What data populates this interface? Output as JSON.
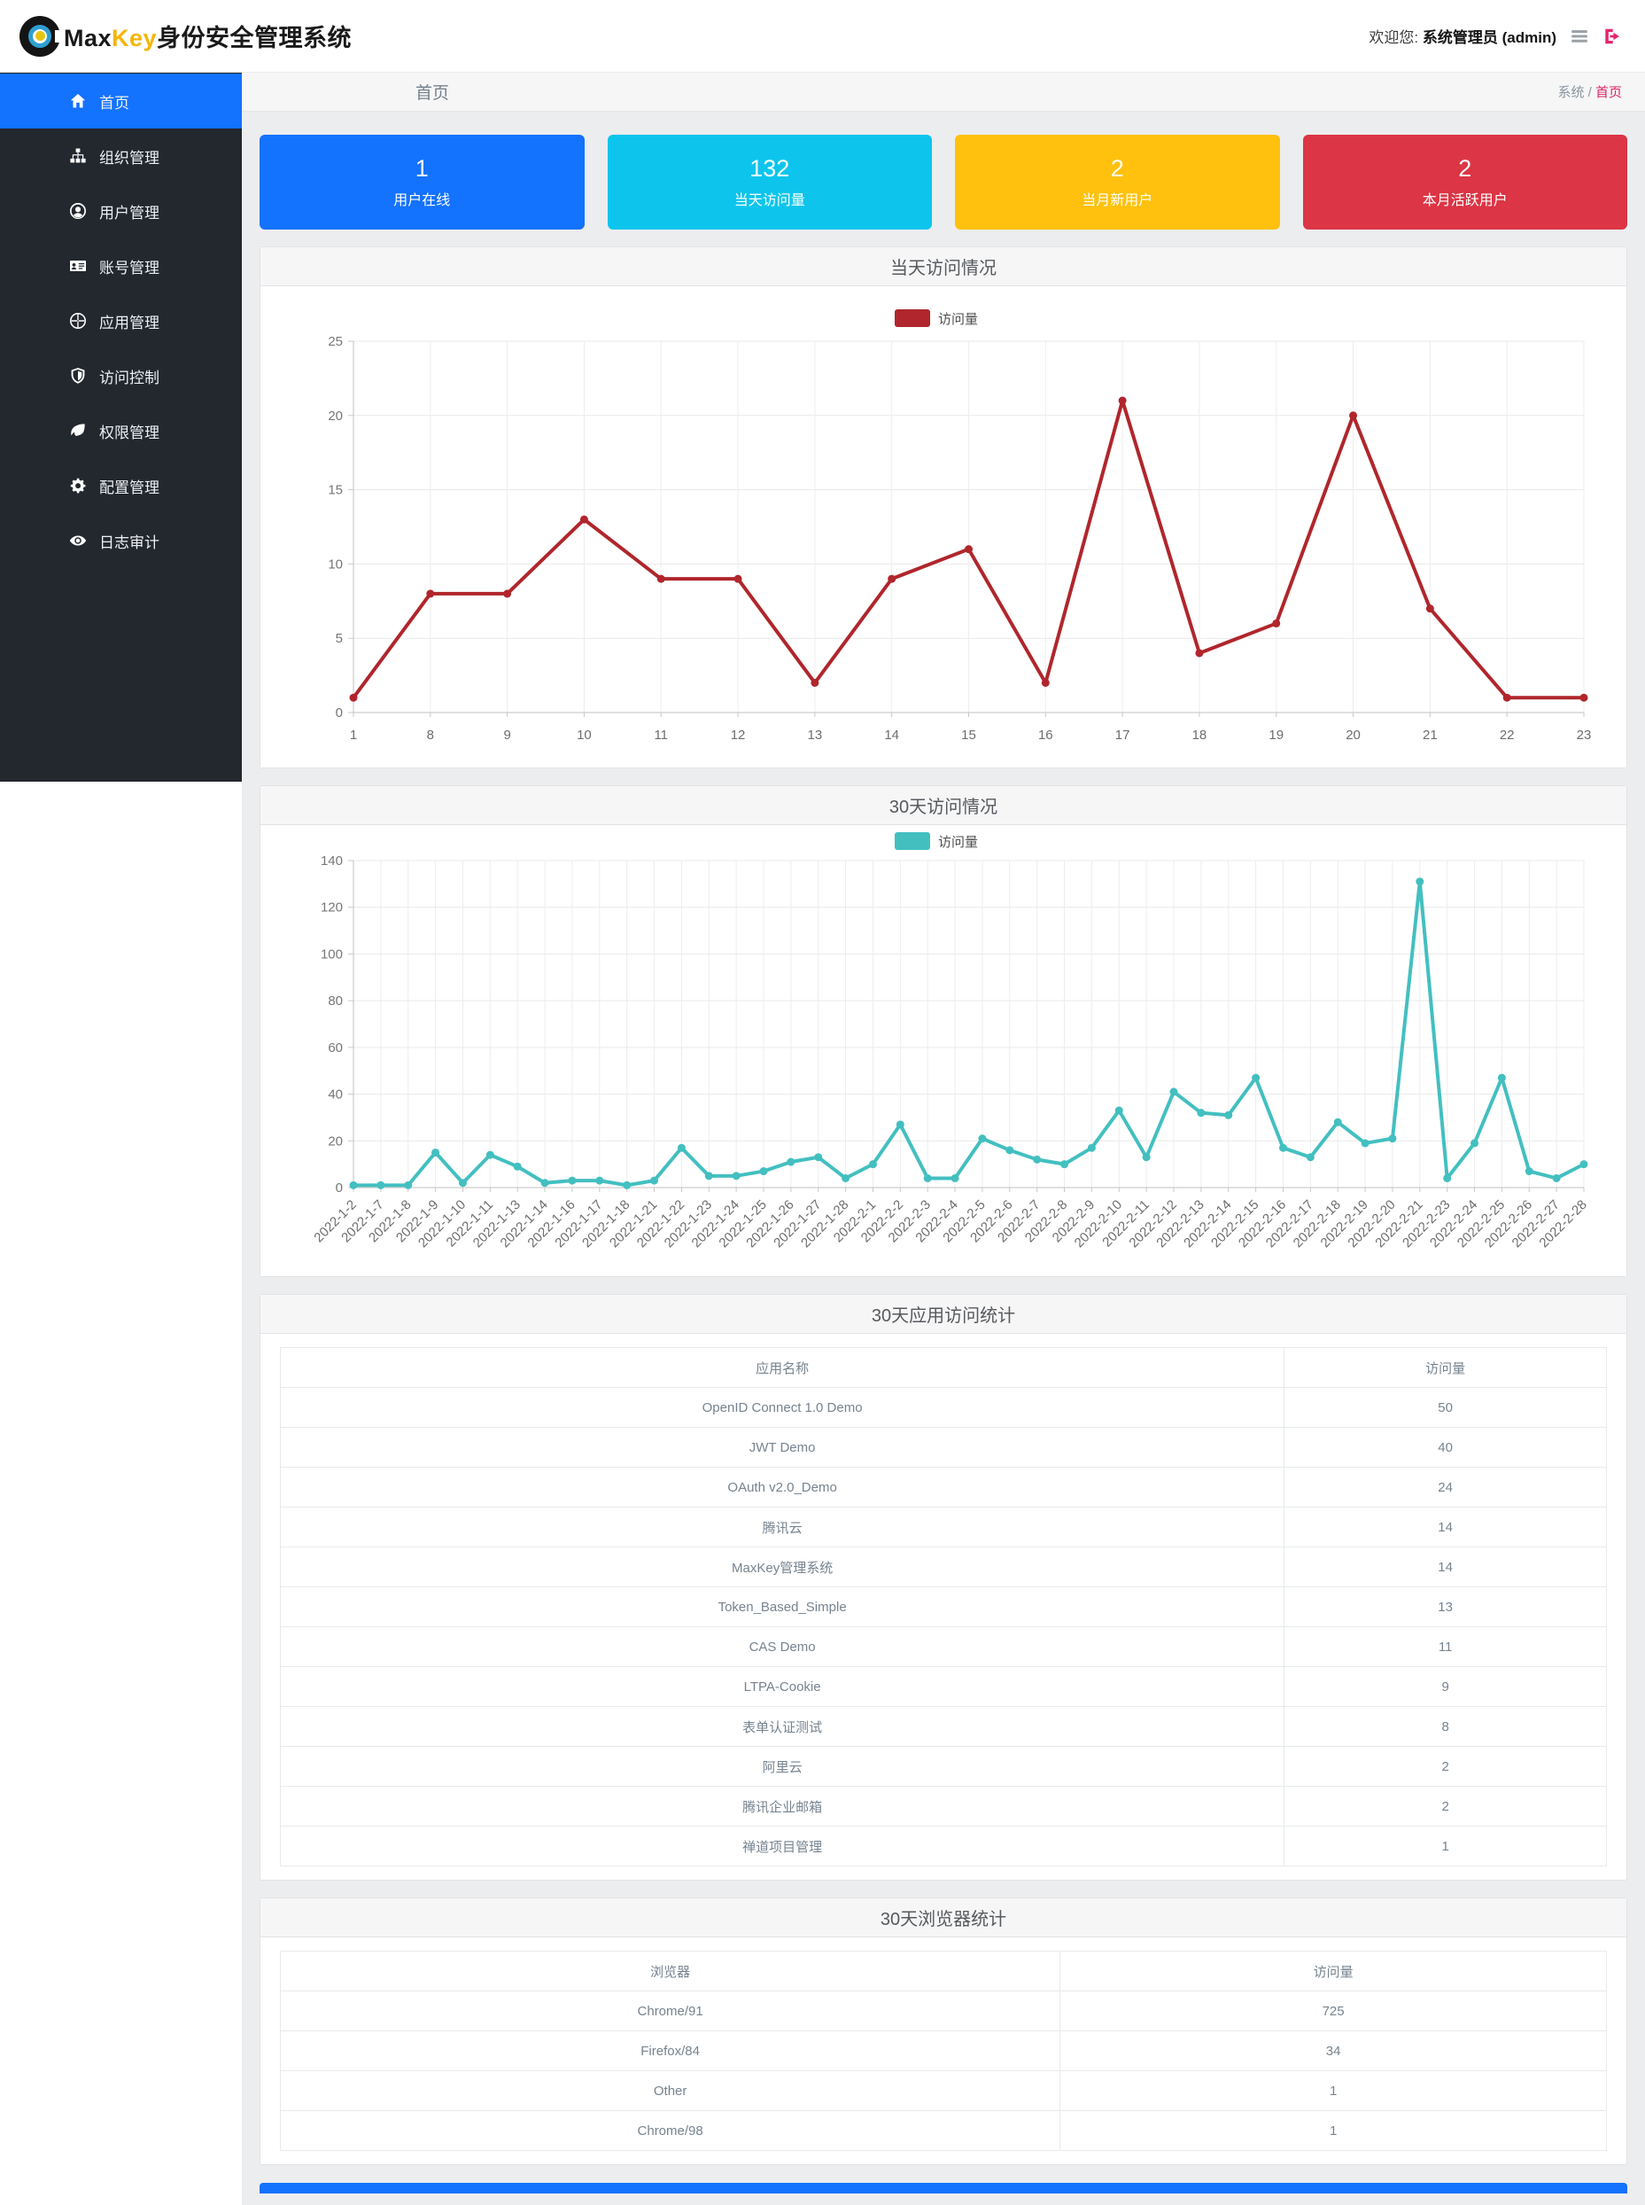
{
  "header": {
    "brand_max": "Max",
    "brand_key": "Key",
    "brand_suffix": "身份安全管理系统",
    "welcome_prefix": "欢迎您:",
    "welcome_user": "系统管理员 (admin)"
  },
  "sidebar": {
    "items": [
      {
        "id": "home",
        "label": "首页",
        "icon": "home-icon",
        "active": true
      },
      {
        "id": "org",
        "label": "组织管理",
        "icon": "sitemap-icon",
        "active": false
      },
      {
        "id": "user",
        "label": "用户管理",
        "icon": "user-circle-icon",
        "active": false
      },
      {
        "id": "account",
        "label": "账号管理",
        "icon": "id-card-icon",
        "active": false
      },
      {
        "id": "app",
        "label": "应用管理",
        "icon": "globe-icon",
        "active": false
      },
      {
        "id": "access",
        "label": "访问控制",
        "icon": "shield-icon",
        "active": false
      },
      {
        "id": "permission",
        "label": "权限管理",
        "icon": "leaf-icon",
        "active": false
      },
      {
        "id": "config",
        "label": "配置管理",
        "icon": "cogs-icon",
        "active": false
      },
      {
        "id": "audit",
        "label": "日志审计",
        "icon": "eye-icon",
        "active": false
      }
    ]
  },
  "breadcrumb": {
    "title": "首页",
    "path_root": "系统",
    "separator": " / ",
    "path_current": "首页"
  },
  "stat_cards": [
    {
      "value": "1",
      "label": "用户在线",
      "color": "#1372fe"
    },
    {
      "value": "132",
      "label": "当天访问量",
      "color": "#0dc5ec"
    },
    {
      "value": "2",
      "label": "当月新用户",
      "color": "#ffc10d"
    },
    {
      "value": "2",
      "label": "本月活跃用户",
      "color": "#dc3545"
    }
  ],
  "chart_data": [
    {
      "id": "daily-visits",
      "type": "line",
      "title": "当天访问情况",
      "legend": "访问量",
      "color": "#b0262c",
      "categories": [
        "1",
        "8",
        "9",
        "10",
        "11",
        "12",
        "13",
        "14",
        "15",
        "16",
        "17",
        "18",
        "19",
        "20",
        "21",
        "22",
        "23"
      ],
      "values": [
        1,
        8,
        8,
        13,
        9,
        9,
        2,
        9,
        11,
        2,
        21,
        4,
        6,
        20,
        7,
        1,
        1
      ],
      "ylim": [
        0,
        25
      ],
      "ytick_step": 5,
      "x_label_rotate": 0,
      "grid": true,
      "legend_position": "top-center"
    },
    {
      "id": "monthly-visits",
      "type": "line",
      "title": "30天访问情况",
      "legend": "访问量",
      "color": "#43bfc0",
      "categories": [
        "2022-1-2",
        "2022-1-7",
        "2022-1-8",
        "2022-1-9",
        "2022-1-10",
        "2022-1-11",
        "2022-1-13",
        "2022-1-14",
        "2022-1-16",
        "2022-1-17",
        "2022-1-18",
        "2022-1-21",
        "2022-1-22",
        "2022-1-23",
        "2022-1-24",
        "2022-1-25",
        "2022-1-26",
        "2022-1-27",
        "2022-1-28",
        "2022-2-1",
        "2022-2-2",
        "2022-2-3",
        "2022-2-4",
        "2022-2-5",
        "2022-2-6",
        "2022-2-7",
        "2022-2-8",
        "2022-2-9",
        "2022-2-10",
        "2022-2-11",
        "2022-2-12",
        "2022-2-13",
        "2022-2-14",
        "2022-2-15",
        "2022-2-16",
        "2022-2-17",
        "2022-2-18",
        "2022-2-19",
        "2022-2-20",
        "2022-2-21",
        "2022-2-23",
        "2022-2-24",
        "2022-2-25",
        "2022-2-26",
        "2022-2-27",
        "2022-2-28"
      ],
      "values": [
        1,
        1,
        1,
        15,
        2,
        14,
        9,
        2,
        3,
        3,
        1,
        3,
        17,
        5,
        5,
        7,
        11,
        13,
        4,
        10,
        27,
        4,
        4,
        21,
        16,
        12,
        10,
        17,
        33,
        13,
        41,
        32,
        31,
        47,
        17,
        13,
        28,
        19,
        21,
        131,
        4,
        19,
        47,
        7,
        4,
        10
      ],
      "ylim": [
        0,
        140
      ],
      "ytick_step": 20,
      "x_label_rotate": 45,
      "grid": true,
      "legend_position": "top-center"
    },
    {
      "id": "app-visits-table",
      "type": "table",
      "title": "30天应用访问统计",
      "columns": [
        "应用名称",
        "访问量"
      ],
      "col_widths": [
        "75.7%",
        "24.3%"
      ],
      "rows": [
        [
          "OpenID Connect 1.0 Demo",
          "50"
        ],
        [
          "JWT Demo",
          "40"
        ],
        [
          "OAuth v2.0_Demo",
          "24"
        ],
        [
          "腾讯云",
          "14"
        ],
        [
          "MaxKey管理系统",
          "14"
        ],
        [
          "Token_Based_Simple",
          "13"
        ],
        [
          "CAS Demo",
          "11"
        ],
        [
          "LTPA-Cookie",
          "9"
        ],
        [
          "表单认证测试",
          "8"
        ],
        [
          "阿里云",
          "2"
        ],
        [
          "腾讯企业邮箱",
          "2"
        ],
        [
          "禅道项目管理",
          "1"
        ]
      ]
    },
    {
      "id": "browser-visits-table",
      "type": "table",
      "title": "30天浏览器统计",
      "columns": [
        "浏览器",
        "访问量"
      ],
      "col_widths": [
        "58.8%",
        "41.2%"
      ],
      "rows": [
        [
          "Chrome/91",
          "725"
        ],
        [
          "Firefox/84",
          "34"
        ],
        [
          "Other",
          "1"
        ],
        [
          "Chrome/98",
          "1"
        ]
      ]
    }
  ],
  "colors": {
    "primary": "#1372fe",
    "sidebar_bg": "#23272e",
    "chart1_line": "#b0262c",
    "chart2_line": "#43bfc0",
    "breadcrumb_active": "#df2361",
    "logout_icon": "#e6246e"
  }
}
